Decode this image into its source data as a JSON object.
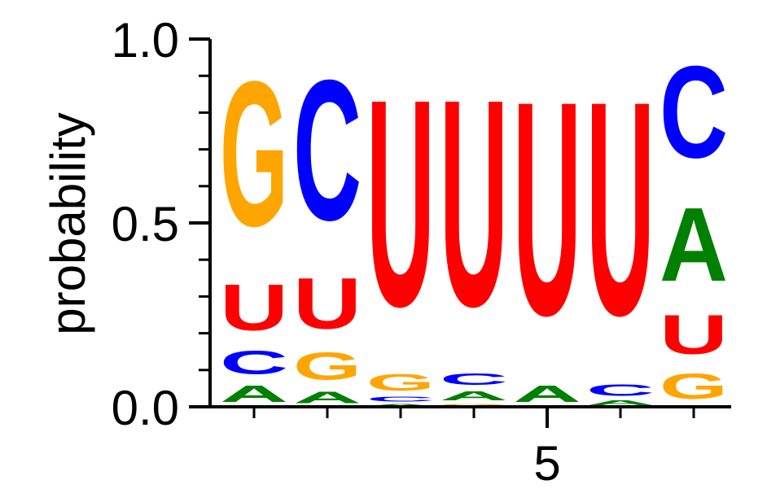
{
  "chart_data": {
    "type": "sequence_logo",
    "ylabel": "probability",
    "ylim": [
      0,
      1
    ],
    "yticks": [
      "0.0",
      "0.5",
      "1.0"
    ],
    "yticks_values": [
      0,
      0.5,
      1
    ],
    "xtick_labels": [
      {
        "position": 5,
        "label": "5"
      }
    ],
    "positions": 7,
    "colors": {
      "A": "#008000",
      "C": "#0000ff",
      "G": "#ffa500",
      "U": "#ff0000"
    },
    "stacks": [
      [
        {
          "letter": "A",
          "p": 0.07
        },
        {
          "letter": "C",
          "p": 0.1
        },
        {
          "letter": "U",
          "p": 0.2
        },
        {
          "letter": "G",
          "p": 0.63
        }
      ],
      [
        {
          "letter": "A",
          "p": 0.05
        },
        {
          "letter": "G",
          "p": 0.12
        },
        {
          "letter": "U",
          "p": 0.22
        },
        {
          "letter": "C",
          "p": 0.61
        }
      ],
      [
        {
          "letter": "A",
          "p": 0.01
        },
        {
          "letter": "C",
          "p": 0.02
        },
        {
          "letter": "G",
          "p": 0.07
        },
        {
          "letter": "U",
          "p": 0.9
        }
      ],
      [
        {
          "letter": "G",
          "p": 0.01
        },
        {
          "letter": "A",
          "p": 0.04
        },
        {
          "letter": "C",
          "p": 0.05
        },
        {
          "letter": "U",
          "p": 0.9
        }
      ],
      [
        {
          "letter": "A",
          "p": 0.07
        },
        {
          "letter": "U",
          "p": 0.93
        }
      ],
      [
        {
          "letter": "A",
          "p": 0.02
        },
        {
          "letter": "C",
          "p": 0.05
        },
        {
          "letter": "U",
          "p": 0.93
        }
      ],
      [
        {
          "letter": "G",
          "p": 0.11
        },
        {
          "letter": "U",
          "p": 0.17
        },
        {
          "letter": "A",
          "p": 0.32
        },
        {
          "letter": "C",
          "p": 0.4
        }
      ]
    ]
  }
}
